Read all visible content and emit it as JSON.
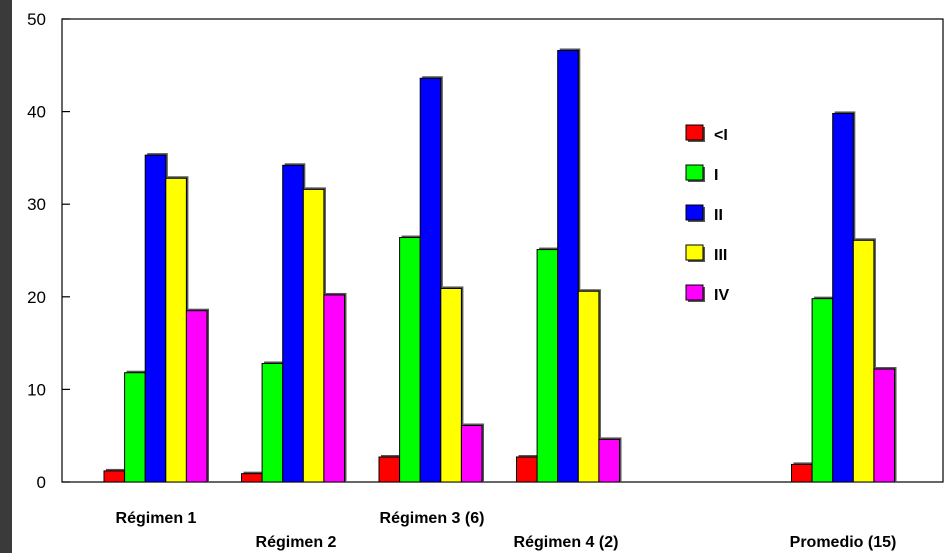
{
  "chart_data": {
    "type": "bar",
    "categories": [
      "Régimen 1",
      "Régimen 2",
      "Régimen 3 (6)",
      "Régimen 4 (2)",
      "",
      "Promedio (15)"
    ],
    "series": [
      {
        "name": "<I",
        "color": "#ff0000",
        "values": [
          1.2,
          0.9,
          2.7,
          2.7,
          null,
          1.9
        ]
      },
      {
        "name": "I",
        "color": "#00ff00",
        "values": [
          11.8,
          12.8,
          26.4,
          25.1,
          null,
          19.8
        ]
      },
      {
        "name": "II",
        "color": "#0000ff",
        "values": [
          35.3,
          34.2,
          43.6,
          46.6,
          null,
          39.8
        ]
      },
      {
        "name": "III",
        "color": "#ffff00",
        "values": [
          32.8,
          31.6,
          20.9,
          20.6,
          null,
          26.1
        ]
      },
      {
        "name": "IV",
        "color": "#ff00ff",
        "values": [
          18.5,
          20.2,
          6.1,
          4.6,
          null,
          12.2
        ]
      }
    ],
    "ylim": [
      0,
      50
    ],
    "yticks": [
      0,
      10,
      20,
      30,
      40,
      50
    ],
    "title": "",
    "xlabel": "",
    "ylabel": "",
    "grid": false,
    "legend_position": "right"
  }
}
